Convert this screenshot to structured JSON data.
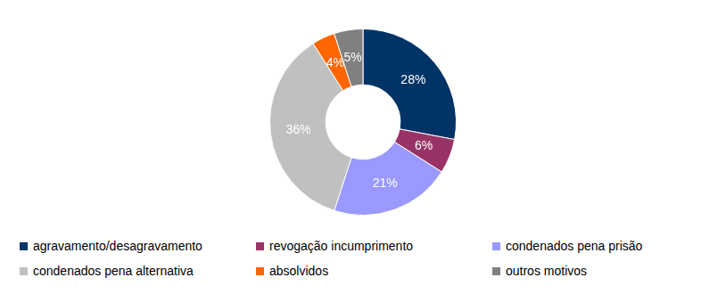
{
  "chart_data": {
    "type": "doughnut",
    "categories": [
      "agravamento/desagravamento",
      "revogação incumprimento",
      "condenados pena prisão",
      "condenados pena alternativa",
      "absolvidos",
      "outros motivos"
    ],
    "values": [
      28,
      6,
      21,
      36,
      4,
      5
    ],
    "value_labels": [
      "28%",
      "6%",
      "21%",
      "36%",
      "4%",
      "5%"
    ],
    "colors": [
      "#003366",
      "#993366",
      "#9999ff",
      "#c0c0c0",
      "#ff6600",
      "#808080"
    ],
    "data_labels": true,
    "legend": "bottom"
  }
}
